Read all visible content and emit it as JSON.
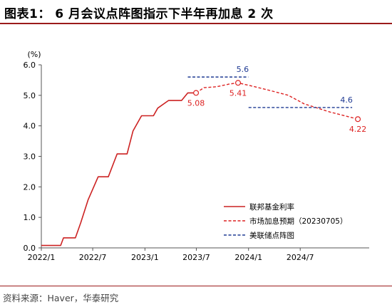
{
  "header": {
    "title": "图表1：  6 月会议点阵图指示下半年再加息 2 次"
  },
  "footer": {
    "source": "资料来源：Haver，华泰研究"
  },
  "colors": {
    "accent": "#9b1b1b",
    "fed_rate": "#cc2222",
    "market": "#dd2222",
    "dot_plot": "#1f3a93"
  },
  "chart_data": {
    "type": "line",
    "title": "",
    "xlabel": "",
    "ylabel": "(%)",
    "ylim": [
      0,
      6
    ],
    "yticks": [
      "0.0",
      "1.0",
      "2.0",
      "3.0",
      "4.0",
      "5.0",
      "6.0"
    ],
    "xlim": [
      "2022-01-01",
      "2025-03-01"
    ],
    "xticks": [
      {
        "date": "2022-01-01",
        "label": "2022/1"
      },
      {
        "date": "2022-07-01",
        "label": "2022/7"
      },
      {
        "date": "2023-01-01",
        "label": "2023/1"
      },
      {
        "date": "2023-07-01",
        "label": "2023/7"
      },
      {
        "date": "2024-01-01",
        "label": "2024/1"
      },
      {
        "date": "2024-07-01",
        "label": "2024/7"
      }
    ],
    "grid": false,
    "legend_position": "lower-right",
    "series": [
      {
        "name": "联邦基金利率",
        "style": "solid",
        "points": [
          [
            "2022-01-01",
            0.08
          ],
          [
            "2022-03-10",
            0.08
          ],
          [
            "2022-03-20",
            0.33
          ],
          [
            "2022-05-01",
            0.33
          ],
          [
            "2022-05-20",
            0.83
          ],
          [
            "2022-06-15",
            1.58
          ],
          [
            "2022-07-20",
            2.33
          ],
          [
            "2022-08-25",
            2.33
          ],
          [
            "2022-09-25",
            3.08
          ],
          [
            "2022-10-30",
            3.08
          ],
          [
            "2022-11-20",
            3.83
          ],
          [
            "2022-12-20",
            4.33
          ],
          [
            "2023-01-31",
            4.33
          ],
          [
            "2023-02-15",
            4.58
          ],
          [
            "2023-03-25",
            4.83
          ],
          [
            "2023-05-10",
            4.83
          ],
          [
            "2023-06-01",
            5.08
          ],
          [
            "2023-06-30",
            5.08
          ]
        ]
      },
      {
        "name": "市场加息预期（20230705）",
        "style": "dashed",
        "points": [
          [
            "2023-06-30",
            5.08
          ],
          [
            "2023-07-28",
            5.25
          ],
          [
            "2023-09-10",
            5.28
          ],
          [
            "2023-10-25",
            5.37
          ],
          [
            "2023-11-25",
            5.41
          ],
          [
            "2024-01-15",
            5.3
          ],
          [
            "2024-03-20",
            5.15
          ],
          [
            "2024-05-20",
            5.0
          ],
          [
            "2024-07-15",
            4.72
          ],
          [
            "2024-10-15",
            4.45
          ],
          [
            "2025-01-20",
            4.22
          ]
        ],
        "markers": [
          {
            "date": "2023-06-30",
            "value": 5.08,
            "label": "5.08"
          },
          {
            "date": "2023-11-25",
            "value": 5.41,
            "label": "5.41"
          },
          {
            "date": "2025-01-20",
            "value": 4.22,
            "label": "4.22"
          }
        ]
      },
      {
        "name": "美联储点阵图",
        "style": "dashed",
        "segments": [
          {
            "from": "2023-06-01",
            "to": "2023-12-31",
            "value": 5.6,
            "label": "5.6"
          },
          {
            "from": "2024-01-01",
            "to": "2024-12-31",
            "value": 4.6,
            "label": "4.6"
          }
        ]
      }
    ]
  }
}
